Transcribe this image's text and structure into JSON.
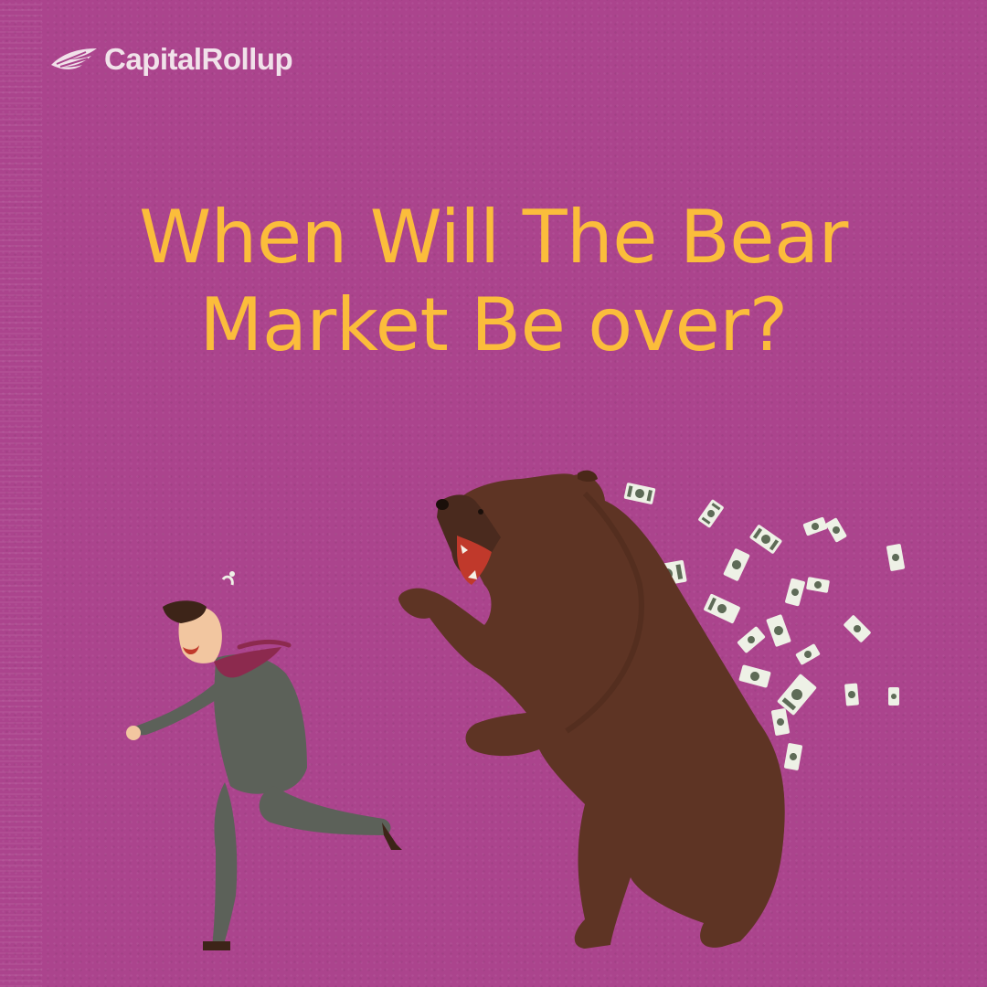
{
  "brand": {
    "name": "CapitalRollup",
    "logo_icon": "wing-logo-icon",
    "text_color": "#f1e2ea"
  },
  "headline": {
    "line1": "When Will The Bear",
    "line2": "Market Be over?",
    "color": "#fbbd3b"
  },
  "illustration": {
    "background_color": "#ab448d",
    "bear_color": "#5e3424",
    "suit_color": "#5c6159",
    "tie_color": "#8c2a4e",
    "banknote_color": "#eef1e6"
  }
}
